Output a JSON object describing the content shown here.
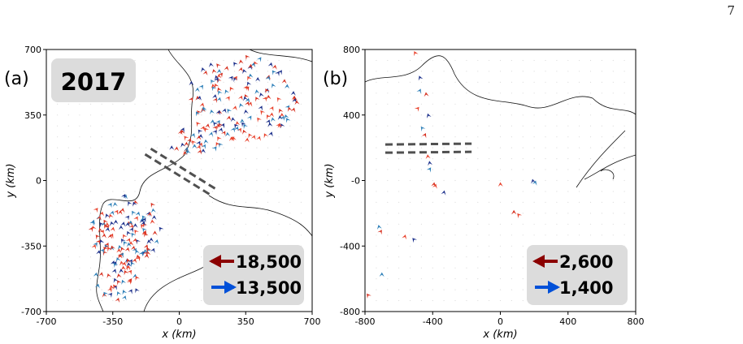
{
  "page_number": "7",
  "colors": {
    "dark_red": "#8b0000",
    "blue": "#0050d8",
    "red_arrow": "#e8402a",
    "navy_arrow": "#1a2e8a",
    "box_bg": "#dcdcdc",
    "dash": "#505050"
  },
  "chart_data": [
    {
      "type": "scatter",
      "panel_label": "(a)",
      "year_label": "2017",
      "xlabel": "x   (km)",
      "ylabel": "y   (km)",
      "xlim": [
        -700,
        700
      ],
      "ylim": [
        -700,
        700
      ],
      "xticks": [
        "-700",
        "-350",
        "0",
        "350",
        "700"
      ],
      "yticks": [
        "-700",
        "-350",
        "0",
        "350",
        "700"
      ],
      "legend": [
        {
          "direction": "left",
          "color": "#8b0000",
          "label": "18,500"
        },
        {
          "direction": "right",
          "color": "#0050d8",
          "label": "13,500"
        }
      ],
      "dashed_lines": [
        {
          "from": [
            -150,
            170
          ],
          "to": [
            200,
            -50
          ]
        },
        {
          "from": [
            -180,
            140
          ],
          "to": [
            170,
            -80
          ]
        }
      ]
    },
    {
      "type": "scatter",
      "panel_label": "(b)",
      "xlabel": "x   (km)",
      "ylabel": "y   (km)",
      "xlim": [
        -800,
        800
      ],
      "ylim": [
        -800,
        800
      ],
      "xticks": [
        "-800",
        "-400",
        "0",
        "400",
        "800"
      ],
      "yticks": [
        "-800",
        "-400",
        "-0",
        "400",
        "800"
      ],
      "legend": [
        {
          "direction": "left",
          "color": "#8b0000",
          "label": "2,600"
        },
        {
          "direction": "right",
          "color": "#0050d8",
          "label": "1,400"
        }
      ],
      "dashed_lines": [
        {
          "from": [
            -680,
            220
          ],
          "to": [
            -170,
            225
          ]
        },
        {
          "from": [
            -680,
            170
          ],
          "to": [
            -170,
            175
          ]
        }
      ],
      "points": [
        [
          -510,
          790
        ],
        [
          -480,
          640
        ],
        [
          -470,
          560
        ],
        [
          -440,
          540
        ],
        [
          -480,
          450
        ],
        [
          -430,
          410
        ],
        [
          -470,
          330
        ],
        [
          -440,
          290
        ],
        [
          -430,
          160
        ],
        [
          -420,
          120
        ],
        [
          -410,
          80
        ],
        [
          -390,
          -10
        ],
        [
          -380,
          -20
        ],
        [
          -330,
          -60
        ],
        [
          -720,
          -270
        ],
        [
          -700,
          -300
        ],
        [
          -560,
          -330
        ],
        [
          -520,
          -350
        ],
        [
          -700,
          -560
        ],
        [
          -790,
          -690
        ],
        [
          0,
          -10
        ],
        [
          190,
          10
        ],
        [
          210,
          0
        ],
        [
          80,
          -180
        ],
        [
          100,
          -200
        ]
      ]
    }
  ]
}
